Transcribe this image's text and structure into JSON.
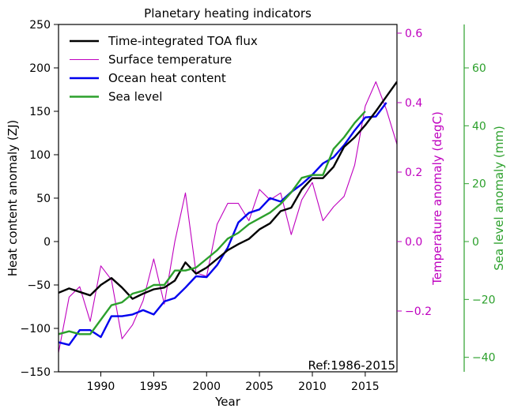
{
  "chart_data": {
    "type": "line",
    "title": "Planetary heating indicators",
    "xlabel": "Year",
    "xlim": [
      1986,
      2018
    ],
    "x_ticks": [
      1990,
      1995,
      2000,
      2005,
      2010,
      2015
    ],
    "annotation": "Ref:1986-2015",
    "legend_position": "top-left",
    "axes": {
      "left": {
        "label": "Heat content anomaly (ZJ)",
        "lim": [
          -150,
          250
        ],
        "ticks": [
          -150,
          -100,
          -50,
          0,
          50,
          100,
          150,
          200,
          250
        ],
        "color": "#000000"
      },
      "right1": {
        "label": "Temperature anomaly (degC)",
        "lim": [
          -0.375,
          0.625
        ],
        "ticks": [
          -0.2,
          0.0,
          0.2,
          0.4,
          0.6
        ],
        "tick_labels": [
          "−0.2",
          "0.0",
          "0.2",
          "0.4",
          "0.6"
        ],
        "color": "#bf00bf"
      },
      "right2": {
        "label": "Sea level anomaly (mm)",
        "lim": [
          -45,
          75
        ],
        "ticks": [
          -40,
          -20,
          0,
          20,
          40,
          60
        ],
        "tick_labels": [
          "−40",
          "−20",
          "0",
          "20",
          "40",
          "60"
        ],
        "color": "#2ca02c"
      }
    },
    "series": [
      {
        "name": "Time-integrated TOA flux",
        "axis": "left",
        "color": "#000000",
        "width": 2.4,
        "x": [
          1986,
          1987,
          1988,
          1989,
          1990,
          1991,
          1992,
          1993,
          1994,
          1995,
          1996,
          1997,
          1998,
          1999,
          2000,
          2001,
          2002,
          2003,
          2004,
          2005,
          2006,
          2007,
          2008,
          2009,
          2010,
          2011,
          2012,
          2013,
          2014,
          2015,
          2016,
          2017,
          2018
        ],
        "values": [
          -59,
          -54,
          -58,
          -62,
          -50,
          -42,
          -53,
          -66,
          -60,
          -55,
          -53,
          -45,
          -24,
          -37,
          -30,
          -20,
          -10,
          -3,
          3,
          14,
          21,
          35,
          39,
          60,
          73,
          73,
          86,
          109,
          120,
          134,
          150,
          167,
          184
        ]
      },
      {
        "name": "Surface temperature",
        "axis": "right1",
        "color": "#bf00bf",
        "width": 1.1,
        "x": [
          1986,
          1987,
          1988,
          1989,
          1990,
          1991,
          1992,
          1993,
          1994,
          1995,
          1996,
          1997,
          1998,
          1999,
          2000,
          2001,
          2002,
          2003,
          2004,
          2005,
          2006,
          2007,
          2008,
          2009,
          2010,
          2011,
          2012,
          2013,
          2014,
          2015,
          2016,
          2017,
          2018
        ],
        "values": [
          -0.32,
          -0.16,
          -0.13,
          -0.23,
          -0.07,
          -0.11,
          -0.28,
          -0.24,
          -0.17,
          -0.05,
          -0.18,
          0.0,
          0.14,
          -0.09,
          -0.1,
          0.05,
          0.11,
          0.11,
          0.06,
          0.15,
          0.12,
          0.14,
          0.02,
          0.12,
          0.17,
          0.06,
          0.1,
          0.13,
          0.22,
          0.39,
          0.46,
          0.38,
          0.28
        ]
      },
      {
        "name": "Ocean heat content",
        "axis": "left",
        "color": "#0000ee",
        "width": 2.4,
        "x": [
          1986,
          1987,
          1988,
          1989,
          1990,
          1991,
          1992,
          1993,
          1994,
          1995,
          1996,
          1997,
          1998,
          1999,
          2000,
          2001,
          2002,
          2003,
          2004,
          2005,
          2006,
          2007,
          2008,
          2009,
          2010,
          2011,
          2012,
          2013,
          2014,
          2015,
          2016,
          2017
        ],
        "values": [
          -116,
          -119,
          -102,
          -102,
          -110,
          -86,
          -86,
          -84,
          -79,
          -84,
          -69,
          -65,
          -53,
          -40,
          -41,
          -27,
          -7,
          22,
          33,
          37,
          50,
          46,
          57,
          66,
          77,
          90,
          97,
          111,
          128,
          143,
          144,
          160
        ]
      },
      {
        "name": "Sea level",
        "axis": "right2",
        "color": "#2ca02c",
        "width": 2.4,
        "x": [
          1986,
          1987,
          1988,
          1989,
          1990,
          1991,
          1992,
          1993,
          1994,
          1995,
          1996,
          1997,
          1998,
          1999,
          2000,
          2001,
          2002,
          2003,
          2004,
          2005,
          2006,
          2007,
          2008,
          2009,
          2010,
          2011,
          2012,
          2013,
          2014,
          2015
        ],
        "values": [
          -32,
          -31,
          -32,
          -32,
          -27,
          -22,
          -21,
          -18,
          -17,
          -15,
          -15,
          -10,
          -10,
          -9,
          -6,
          -3,
          1,
          3,
          6,
          8,
          10,
          13,
          17,
          22,
          23,
          23,
          32,
          36,
          41,
          45
        ]
      }
    ]
  }
}
